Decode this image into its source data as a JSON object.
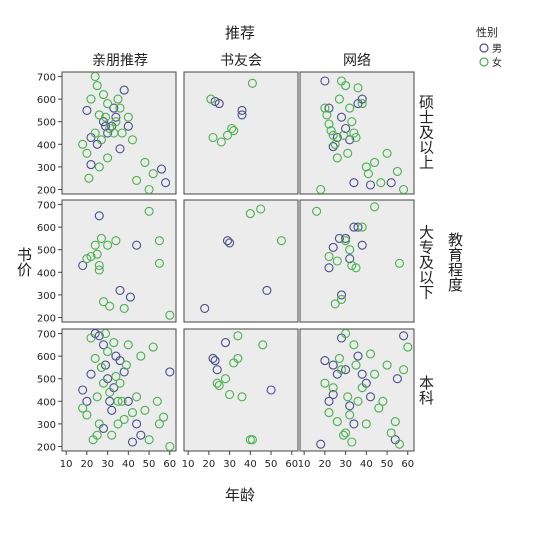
{
  "chart_data": {
    "type": "scatter",
    "title": "",
    "col_facet_title": "推荐",
    "col_facets": [
      "亲朋推荐",
      "书友会",
      "网络"
    ],
    "row_facet_title": "教育程度",
    "row_facets": [
      "硕士及以上",
      "大专及以下",
      "本科"
    ],
    "xlabel": "年龄",
    "ylabel": "书价",
    "xlim": [
      8,
      63
    ],
    "ylim": [
      180,
      720
    ],
    "x_ticks": [
      10,
      20,
      30,
      40,
      50,
      60
    ],
    "y_ticks": [
      200,
      300,
      400,
      500,
      600,
      700
    ],
    "grid": false,
    "legend": {
      "title": "性别",
      "position": "top-right",
      "entries": [
        {
          "name": "男",
          "color": "#4a4e8a"
        },
        {
          "name": "女",
          "color": "#4caf50"
        }
      ]
    },
    "panels": [
      {
        "row": 0,
        "col": 0,
        "male": [
          [
            20,
            550
          ],
          [
            22,
            430
          ],
          [
            25,
            400
          ],
          [
            28,
            500
          ],
          [
            30,
            450
          ],
          [
            32,
            480
          ],
          [
            34,
            520
          ],
          [
            36,
            380
          ],
          [
            38,
            640
          ],
          [
            40,
            480
          ],
          [
            22,
            310
          ],
          [
            56,
            290
          ],
          [
            58,
            230
          ],
          [
            33,
            560
          ],
          [
            29,
            480
          ]
        ],
        "female": [
          [
            18,
            400
          ],
          [
            20,
            360
          ],
          [
            22,
            600
          ],
          [
            24,
            700
          ],
          [
            25,
            660
          ],
          [
            26,
            530
          ],
          [
            27,
            420
          ],
          [
            28,
            620
          ],
          [
            30,
            580
          ],
          [
            31,
            470
          ],
          [
            33,
            450
          ],
          [
            35,
            600
          ],
          [
            36,
            560
          ],
          [
            37,
            450
          ],
          [
            40,
            520
          ],
          [
            42,
            420
          ],
          [
            44,
            240
          ],
          [
            50,
            200
          ],
          [
            48,
            320
          ],
          [
            52,
            270
          ],
          [
            21,
            250
          ],
          [
            26,
            300
          ],
          [
            30,
            340
          ],
          [
            34,
            500
          ],
          [
            29,
            520
          ],
          [
            24,
            450
          ]
        ]
      },
      {
        "row": 0,
        "col": 1,
        "male": [
          [
            23,
            590
          ],
          [
            25,
            580
          ],
          [
            36,
            550
          ],
          [
            36,
            530
          ]
        ],
        "female": [
          [
            21,
            600
          ],
          [
            22,
            430
          ],
          [
            26,
            410
          ],
          [
            29,
            440
          ],
          [
            31,
            470
          ],
          [
            32,
            460
          ],
          [
            41,
            670
          ]
        ]
      },
      {
        "row": 0,
        "col": 2,
        "male": [
          [
            20,
            680
          ],
          [
            22,
            560
          ],
          [
            26,
            430
          ],
          [
            28,
            520
          ],
          [
            30,
            470
          ],
          [
            32,
            420
          ],
          [
            34,
            230
          ],
          [
            36,
            580
          ],
          [
            38,
            600
          ],
          [
            42,
            220
          ],
          [
            52,
            230
          ],
          [
            24,
            390
          ]
        ],
        "female": [
          [
            18,
            200
          ],
          [
            20,
            560
          ],
          [
            21,
            530
          ],
          [
            22,
            490
          ],
          [
            23,
            460
          ],
          [
            24,
            440
          ],
          [
            25,
            400
          ],
          [
            26,
            340
          ],
          [
            27,
            600
          ],
          [
            28,
            680
          ],
          [
            30,
            660
          ],
          [
            32,
            560
          ],
          [
            33,
            500
          ],
          [
            34,
            450
          ],
          [
            35,
            430
          ],
          [
            36,
            650
          ],
          [
            38,
            580
          ],
          [
            40,
            300
          ],
          [
            41,
            270
          ],
          [
            44,
            320
          ],
          [
            47,
            230
          ],
          [
            50,
            360
          ],
          [
            55,
            280
          ],
          [
            58,
            200
          ],
          [
            29,
            440
          ],
          [
            31,
            360
          ]
        ]
      },
      {
        "row": 1,
        "col": 0,
        "male": [
          [
            18,
            430
          ],
          [
            26,
            650
          ],
          [
            36,
            320
          ],
          [
            41,
            290
          ],
          [
            44,
            520
          ]
        ],
        "female": [
          [
            20,
            460
          ],
          [
            22,
            470
          ],
          [
            24,
            520
          ],
          [
            25,
            480
          ],
          [
            26,
            410
          ],
          [
            27,
            550
          ],
          [
            28,
            270
          ],
          [
            30,
            520
          ],
          [
            31,
            250
          ],
          [
            34,
            540
          ],
          [
            38,
            240
          ],
          [
            50,
            670
          ],
          [
            55,
            540
          ],
          [
            55,
            440
          ],
          [
            60,
            210
          ],
          [
            26,
            430
          ]
        ]
      },
      {
        "row": 1,
        "col": 1,
        "male": [
          [
            18,
            240
          ],
          [
            29,
            540
          ],
          [
            30,
            530
          ],
          [
            48,
            320
          ]
        ],
        "female": [
          [
            40,
            660
          ],
          [
            45,
            680
          ],
          [
            55,
            540
          ]
        ]
      },
      {
        "row": 1,
        "col": 2,
        "male": [
          [
            22,
            420
          ],
          [
            24,
            510
          ],
          [
            27,
            550
          ],
          [
            28,
            300
          ],
          [
            30,
            550
          ],
          [
            32,
            460
          ],
          [
            34,
            600
          ],
          [
            36,
            600
          ],
          [
            38,
            520
          ]
        ],
        "female": [
          [
            16,
            670
          ],
          [
            22,
            470
          ],
          [
            25,
            260
          ],
          [
            26,
            450
          ],
          [
            28,
            280
          ],
          [
            30,
            540
          ],
          [
            32,
            500
          ],
          [
            33,
            430
          ],
          [
            35,
            420
          ],
          [
            38,
            600
          ],
          [
            44,
            690
          ],
          [
            56,
            440
          ]
        ]
      },
      {
        "row": 2,
        "col": 0,
        "male": [
          [
            18,
            450
          ],
          [
            20,
            400
          ],
          [
            22,
            520
          ],
          [
            24,
            700
          ],
          [
            26,
            690
          ],
          [
            28,
            650
          ],
          [
            29,
            560
          ],
          [
            30,
            500
          ],
          [
            31,
            400
          ],
          [
            32,
            360
          ],
          [
            34,
            600
          ],
          [
            36,
            580
          ],
          [
            38,
            530
          ],
          [
            40,
            400
          ],
          [
            42,
            220
          ],
          [
            44,
            300
          ],
          [
            46,
            250
          ],
          [
            60,
            530
          ],
          [
            28,
            280
          ],
          [
            33,
            460
          ]
        ],
        "female": [
          [
            18,
            370
          ],
          [
            20,
            340
          ],
          [
            22,
            680
          ],
          [
            24,
            590
          ],
          [
            25,
            420
          ],
          [
            26,
            300
          ],
          [
            27,
            550
          ],
          [
            28,
            480
          ],
          [
            29,
            700
          ],
          [
            30,
            620
          ],
          [
            31,
            440
          ],
          [
            32,
            250
          ],
          [
            33,
            660
          ],
          [
            34,
            510
          ],
          [
            35,
            300
          ],
          [
            36,
            480
          ],
          [
            37,
            400
          ],
          [
            38,
            320
          ],
          [
            39,
            560
          ],
          [
            40,
            650
          ],
          [
            42,
            350
          ],
          [
            44,
            420
          ],
          [
            46,
            600
          ],
          [
            48,
            360
          ],
          [
            50,
            230
          ],
          [
            52,
            640
          ],
          [
            54,
            400
          ],
          [
            55,
            300
          ],
          [
            57,
            330
          ],
          [
            60,
            200
          ],
          [
            23,
            230
          ],
          [
            25,
            250
          ],
          [
            35,
            400
          ]
        ]
      },
      {
        "row": 2,
        "col": 1,
        "male": [
          [
            22,
            590
          ],
          [
            23,
            580
          ],
          [
            24,
            540
          ],
          [
            28,
            660
          ],
          [
            50,
            450
          ]
        ],
        "female": [
          [
            24,
            480
          ],
          [
            25,
            470
          ],
          [
            28,
            500
          ],
          [
            30,
            430
          ],
          [
            32,
            570
          ],
          [
            34,
            690
          ],
          [
            34,
            590
          ],
          [
            40,
            230
          ],
          [
            41,
            230
          ],
          [
            36,
            420
          ],
          [
            46,
            650
          ]
        ]
      },
      {
        "row": 2,
        "col": 2,
        "male": [
          [
            18,
            210
          ],
          [
            20,
            580
          ],
          [
            22,
            400
          ],
          [
            24,
            560
          ],
          [
            26,
            520
          ],
          [
            28,
            680
          ],
          [
            30,
            540
          ],
          [
            32,
            380
          ],
          [
            34,
            300
          ],
          [
            36,
            600
          ],
          [
            38,
            520
          ],
          [
            40,
            480
          ],
          [
            42,
            420
          ],
          [
            54,
            230
          ],
          [
            55,
            500
          ],
          [
            58,
            690
          ],
          [
            24,
            430
          ]
        ],
        "female": [
          [
            20,
            480
          ],
          [
            22,
            350
          ],
          [
            24,
            460
          ],
          [
            26,
            310
          ],
          [
            27,
            590
          ],
          [
            28,
            540
          ],
          [
            29,
            250
          ],
          [
            30,
            700
          ],
          [
            31,
            420
          ],
          [
            32,
            340
          ],
          [
            33,
            220
          ],
          [
            34,
            650
          ],
          [
            35,
            560
          ],
          [
            36,
            400
          ],
          [
            38,
            460
          ],
          [
            40,
            300
          ],
          [
            42,
            610
          ],
          [
            44,
            520
          ],
          [
            46,
            370
          ],
          [
            48,
            400
          ],
          [
            50,
            560
          ],
          [
            52,
            260
          ],
          [
            54,
            310
          ],
          [
            56,
            210
          ],
          [
            58,
            540
          ],
          [
            60,
            640
          ],
          [
            30,
            260
          ]
        ]
      }
    ]
  }
}
